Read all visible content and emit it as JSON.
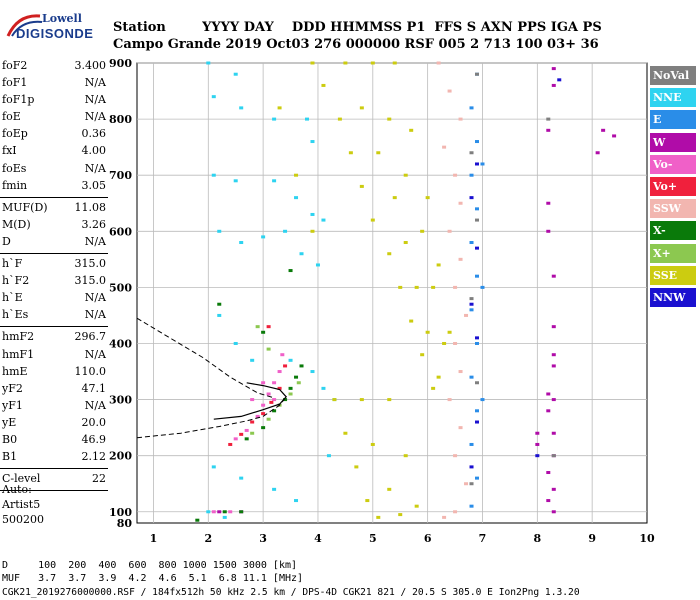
{
  "logo": {
    "line1": "Lowell",
    "line2": "DIGISONDE"
  },
  "header": {
    "row1": "Station        YYYY DAY    DDD HHMMSS P1  FFS S AXN PPS IGA PS",
    "row2": "Campo Grande 2019 Oct03 276 000000 RSF 005 2 713 100 03+ 36"
  },
  "params_group1": [
    {
      "name": "foF2",
      "value": "3.400"
    },
    {
      "name": "foF1",
      "value": "N/A"
    },
    {
      "name": "foF1p",
      "value": "N/A"
    },
    {
      "name": "foE",
      "value": "N/A"
    },
    {
      "name": "foEp",
      "value": "0.36"
    },
    {
      "name": "fxI",
      "value": "4.00"
    },
    {
      "name": "foEs",
      "value": "N/A"
    },
    {
      "name": "fmin",
      "value": "3.05"
    }
  ],
  "params_group2": [
    {
      "name": "MUF(D)",
      "value": "11.08"
    },
    {
      "name": "M(D)",
      "value": "3.26"
    },
    {
      "name": "D",
      "value": "N/A"
    }
  ],
  "params_group3": [
    {
      "name": "h`F",
      "value": "315.0"
    },
    {
      "name": "h`F2",
      "value": "315.0"
    },
    {
      "name": "h`E",
      "value": "N/A"
    },
    {
      "name": "h`Es",
      "value": "N/A"
    }
  ],
  "params_group4": [
    {
      "name": "hmF2",
      "value": "296.7"
    },
    {
      "name": "hmF1",
      "value": "N/A"
    },
    {
      "name": "hmE",
      "value": "110.0"
    },
    {
      "name": "yF2",
      "value": "47.1"
    },
    {
      "name": "yF1",
      "value": "N/A"
    },
    {
      "name": "yE",
      "value": "20.0"
    },
    {
      "name": "B0",
      "value": "46.9"
    },
    {
      "name": "B1",
      "value": "2.12"
    }
  ],
  "params_group5": [
    {
      "name": "C-level",
      "value": "22"
    }
  ],
  "auto": {
    "line1": "Auto:",
    "line2": "Artist5",
    "line3": "500200"
  },
  "footer": {
    "d_row": "D     100  200  400  600  800 1000 1500 3000 [km]",
    "muf_row": "MUF   3.7  3.7  3.9  4.2  4.6  5.1  6.8 11.1 [MHz]",
    "file_row": "CGK21_2019276000000.RSF / 184fx512h 50 kHz 2.5 km / DPS-4D CGK21 821 / 20.5 S 305.0 E Ion2Png 1.3.20"
  },
  "legend": [
    {
      "label": "NoVal",
      "color": "#7f7f7f"
    },
    {
      "label": "NNE",
      "color": "#2ed3f0"
    },
    {
      "label": "E",
      "color": "#2a8de8"
    },
    {
      "label": "W",
      "color": "#b00ca8"
    },
    {
      "label": "Vo-",
      "color": "#f060c8"
    },
    {
      "label": "Vo+",
      "color": "#f0203c"
    },
    {
      "label": "SSW",
      "color": "#f2b6b0"
    },
    {
      "label": "X-",
      "color": "#0a7a0a"
    },
    {
      "label": "X+",
      "color": "#8cc850"
    },
    {
      "label": "SSE",
      "color": "#cccc10"
    },
    {
      "label": "NNW",
      "color": "#1a10d0"
    }
  ],
  "chart_data": {
    "type": "scatter",
    "title": "",
    "xlabel": "",
    "ylabel": "",
    "xlim": [
      0.7,
      10
    ],
    "ylim": [
      80,
      900
    ],
    "x_ticks": [
      1,
      2,
      3,
      4,
      5,
      6,
      7,
      8,
      9,
      10
    ],
    "y_ticks": [
      100,
      200,
      300,
      400,
      500,
      600,
      700,
      800,
      900
    ],
    "y_tick_labels": [
      "100",
      "200",
      "300",
      "400",
      "500",
      "600",
      "700",
      "800",
      "900"
    ],
    "x_tick_labels": [
      "1",
      "2",
      "3",
      "4",
      "5",
      "6",
      "7",
      "8",
      "9",
      "10"
    ],
    "y_axis_bottom_label": "80",
    "grid": true,
    "series": [
      {
        "name": "NNE",
        "color": "#2ed3f0",
        "points": [
          [
            2.0,
            900
          ],
          [
            2.5,
            880
          ],
          [
            2.1,
            840
          ],
          [
            2.6,
            820
          ],
          [
            3.2,
            800
          ],
          [
            3.8,
            800
          ],
          [
            3.9,
            760
          ],
          [
            2.1,
            700
          ],
          [
            2.5,
            690
          ],
          [
            3.2,
            690
          ],
          [
            3.6,
            660
          ],
          [
            3.9,
            630
          ],
          [
            4.1,
            620
          ],
          [
            2.2,
            600
          ],
          [
            2.6,
            580
          ],
          [
            3.0,
            590
          ],
          [
            3.4,
            600
          ],
          [
            3.7,
            560
          ],
          [
            4.0,
            540
          ],
          [
            2.2,
            450
          ],
          [
            2.5,
            400
          ],
          [
            2.8,
            370
          ],
          [
            3.5,
            370
          ],
          [
            3.9,
            350
          ],
          [
            4.1,
            320
          ],
          [
            4.3,
            300
          ],
          [
            2.1,
            180
          ],
          [
            2.6,
            160
          ],
          [
            3.2,
            140
          ],
          [
            3.6,
            120
          ],
          [
            2.0,
            100
          ],
          [
            2.3,
            90
          ],
          [
            4.2,
            200
          ]
        ]
      },
      {
        "name": "SSE",
        "color": "#cccc10",
        "points": [
          [
            3.9,
            900
          ],
          [
            4.1,
            860
          ],
          [
            4.4,
            800
          ],
          [
            4.6,
            740
          ],
          [
            4.8,
            680
          ],
          [
            5.0,
            620
          ],
          [
            5.3,
            560
          ],
          [
            5.5,
            500
          ],
          [
            5.7,
            440
          ],
          [
            5.9,
            380
          ],
          [
            6.1,
            320
          ],
          [
            4.5,
            900
          ],
          [
            4.8,
            820
          ],
          [
            5.1,
            740
          ],
          [
            5.4,
            660
          ],
          [
            5.6,
            580
          ],
          [
            5.8,
            500
          ],
          [
            6.0,
            420
          ],
          [
            6.2,
            340
          ],
          [
            5.0,
            900
          ],
          [
            5.3,
            800
          ],
          [
            5.6,
            700
          ],
          [
            5.9,
            600
          ],
          [
            6.1,
            500
          ],
          [
            6.3,
            400
          ],
          [
            5.4,
            900
          ],
          [
            5.7,
            780
          ],
          [
            6.0,
            660
          ],
          [
            6.2,
            540
          ],
          [
            6.4,
            420
          ],
          [
            4.3,
            300
          ],
          [
            4.5,
            240
          ],
          [
            4.7,
            180
          ],
          [
            4.9,
            120
          ],
          [
            5.1,
            90
          ],
          [
            4.8,
            300
          ],
          [
            5.0,
            220
          ],
          [
            5.3,
            140
          ],
          [
            5.5,
            95
          ],
          [
            5.3,
            300
          ],
          [
            5.6,
            200
          ],
          [
            5.8,
            110
          ],
          [
            3.3,
            820
          ],
          [
            3.6,
            700
          ],
          [
            3.9,
            600
          ]
        ]
      },
      {
        "name": "SSW",
        "color": "#f2b6b0",
        "points": [
          [
            6.2,
            900
          ],
          [
            6.4,
            850
          ],
          [
            6.6,
            800
          ],
          [
            6.3,
            750
          ],
          [
            6.5,
            700
          ],
          [
            6.6,
            650
          ],
          [
            6.4,
            600
          ],
          [
            6.6,
            550
          ],
          [
            6.5,
            500
          ],
          [
            6.7,
            450
          ],
          [
            6.5,
            400
          ],
          [
            6.6,
            350
          ],
          [
            6.4,
            300
          ],
          [
            6.6,
            250
          ],
          [
            6.5,
            200
          ],
          [
            6.7,
            150
          ],
          [
            6.5,
            100
          ],
          [
            6.3,
            90
          ]
        ]
      },
      {
        "name": "E",
        "color": "#2a8de8",
        "points": [
          [
            6.9,
            880
          ],
          [
            6.8,
            820
          ],
          [
            6.9,
            760
          ],
          [
            6.8,
            700
          ],
          [
            6.9,
            640
          ],
          [
            6.8,
            580
          ],
          [
            6.9,
            520
          ],
          [
            6.8,
            460
          ],
          [
            6.9,
            400
          ],
          [
            6.8,
            340
          ],
          [
            6.9,
            280
          ],
          [
            6.8,
            220
          ],
          [
            6.9,
            160
          ],
          [
            6.8,
            110
          ],
          [
            7.0,
            720
          ],
          [
            7.0,
            500
          ],
          [
            7.0,
            300
          ]
        ]
      },
      {
        "name": "W",
        "color": "#b00ca8",
        "points": [
          [
            8.3,
            890
          ],
          [
            8.3,
            860
          ],
          [
            8.2,
            780
          ],
          [
            8.2,
            650
          ],
          [
            8.2,
            600
          ],
          [
            8.3,
            520
          ],
          [
            8.3,
            430
          ],
          [
            8.3,
            380
          ],
          [
            8.3,
            360
          ],
          [
            8.2,
            310
          ],
          [
            8.3,
            300
          ],
          [
            8.2,
            280
          ],
          [
            8.3,
            240
          ],
          [
            8.3,
            200
          ],
          [
            8.2,
            170
          ],
          [
            8.3,
            140
          ],
          [
            8.2,
            120
          ],
          [
            8.3,
            100
          ],
          [
            8.0,
            240
          ],
          [
            8.0,
            220
          ],
          [
            9.2,
            780
          ],
          [
            9.4,
            770
          ],
          [
            9.1,
            740
          ],
          [
            2.2,
            100
          ],
          [
            2.6,
            100
          ]
        ]
      },
      {
        "name": "Vo-",
        "color": "#f060c8",
        "points": [
          [
            2.5,
            230
          ],
          [
            2.7,
            245
          ],
          [
            2.9,
            270
          ],
          [
            3.0,
            290
          ],
          [
            3.1,
            310
          ],
          [
            3.2,
            330
          ],
          [
            3.3,
            350
          ],
          [
            3.35,
            380
          ],
          [
            2.8,
            300
          ],
          [
            3.0,
            330
          ],
          [
            3.2,
            300
          ],
          [
            2.1,
            100
          ],
          [
            2.4,
            100
          ]
        ]
      },
      {
        "name": "Vo+",
        "color": "#f0203c",
        "points": [
          [
            2.4,
            220
          ],
          [
            2.6,
            238
          ],
          [
            2.8,
            260
          ],
          [
            3.0,
            275
          ],
          [
            3.15,
            295
          ],
          [
            3.3,
            320
          ],
          [
            3.4,
            360
          ],
          [
            3.1,
            430
          ]
        ]
      },
      {
        "name": "X-",
        "color": "#0a7a0a",
        "points": [
          [
            2.7,
            230
          ],
          [
            3.0,
            250
          ],
          [
            3.2,
            280
          ],
          [
            3.4,
            300
          ],
          [
            3.5,
            320
          ],
          [
            3.6,
            340
          ],
          [
            3.7,
            360
          ],
          [
            3.0,
            420
          ],
          [
            3.5,
            530
          ],
          [
            2.3,
            100
          ],
          [
            2.6,
            100
          ],
          [
            1.8,
            85
          ],
          [
            2.2,
            470
          ]
        ]
      },
      {
        "name": "X+",
        "color": "#8cc850",
        "points": [
          [
            2.8,
            240
          ],
          [
            3.1,
            265
          ],
          [
            3.3,
            290
          ],
          [
            3.5,
            310
          ],
          [
            3.65,
            330
          ],
          [
            3.1,
            390
          ],
          [
            2.9,
            430
          ]
        ]
      },
      {
        "name": "NNW",
        "color": "#1a10d0",
        "points": [
          [
            6.9,
            720
          ],
          [
            6.8,
            660
          ],
          [
            6.9,
            570
          ],
          [
            6.8,
            470
          ],
          [
            6.9,
            410
          ],
          [
            6.9,
            260
          ],
          [
            6.8,
            180
          ],
          [
            8.0,
            200
          ],
          [
            8.4,
            870
          ]
        ]
      },
      {
        "name": "NoVal",
        "color": "#7f7f7f",
        "points": [
          [
            6.9,
            880
          ],
          [
            6.8,
            740
          ],
          [
            6.9,
            620
          ],
          [
            6.8,
            480
          ],
          [
            6.9,
            330
          ],
          [
            6.8,
            150
          ],
          [
            8.2,
            800
          ],
          [
            8.3,
            200
          ]
        ]
      }
    ],
    "profile_curve": {
      "dashed_lower": [
        [
          0.7,
          232
        ],
        [
          1.5,
          240
        ],
        [
          2.2,
          252
        ],
        [
          2.7,
          262
        ],
        [
          3.0,
          270
        ],
        [
          3.3,
          290
        ],
        [
          3.42,
          305
        ]
      ],
      "dashed_upper": [
        [
          0.7,
          445
        ],
        [
          1.3,
          410
        ],
        [
          1.9,
          375
        ],
        [
          2.4,
          340
        ],
        [
          2.9,
          312
        ],
        [
          3.2,
          303
        ]
      ],
      "solid": [
        [
          2.1,
          265
        ],
        [
          2.6,
          270
        ],
        [
          3.0,
          282
        ],
        [
          3.3,
          292
        ],
        [
          3.42,
          305
        ],
        [
          3.3,
          318
        ],
        [
          3.0,
          325
        ],
        [
          2.7,
          330
        ]
      ]
    }
  }
}
